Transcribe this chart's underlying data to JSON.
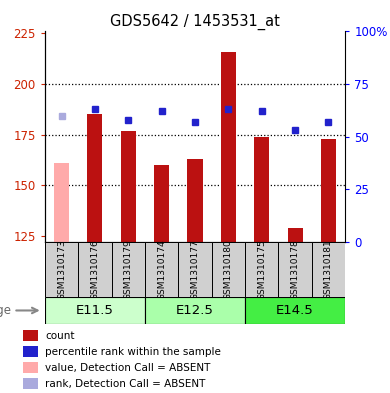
{
  "title": "GDS5642 / 1453531_at",
  "samples": [
    "GSM1310173",
    "GSM1310176",
    "GSM1310179",
    "GSM1310174",
    "GSM1310177",
    "GSM1310180",
    "GSM1310175",
    "GSM1310178",
    "GSM1310181"
  ],
  "count_values": [
    161,
    185,
    177,
    160,
    163,
    216,
    174,
    129,
    173
  ],
  "rank_values": [
    60,
    63,
    58,
    62,
    57,
    63,
    62,
    53,
    57
  ],
  "absent_flags": [
    true,
    false,
    false,
    false,
    false,
    false,
    false,
    false,
    false
  ],
  "ylim_left": [
    122,
    226
  ],
  "ylim_right": [
    0,
    100
  ],
  "yticks_left": [
    125,
    150,
    175,
    200,
    225
  ],
  "ytick_labels_left": [
    "125",
    "150",
    "175",
    "200",
    "225"
  ],
  "ytick_labels_right": [
    "0",
    "25",
    "50",
    "75",
    "100%"
  ],
  "yticks_right": [
    0,
    25,
    50,
    75,
    100
  ],
  "age_groups": [
    {
      "label": "E11.5",
      "start": 0,
      "end": 3
    },
    {
      "label": "E12.5",
      "start": 3,
      "end": 6
    },
    {
      "label": "E14.5",
      "start": 6,
      "end": 9
    }
  ],
  "bar_color_normal": "#bb1111",
  "bar_color_absent": "#ffaaaa",
  "rank_color_normal": "#2222cc",
  "rank_color_absent": "#aaaadd",
  "age_group_color_light": "#ccffcc",
  "age_group_color_bright": "#44ee44",
  "age_group_color_mid": "#aaffaa",
  "grid_color": "#000000",
  "background_color": "#ffffff",
  "xtick_bg": "#cccccc",
  "legend_items": [
    {
      "color": "#bb1111",
      "label": "count"
    },
    {
      "color": "#2222cc",
      "label": "percentile rank within the sample"
    },
    {
      "color": "#ffaaaa",
      "label": "value, Detection Call = ABSENT"
    },
    {
      "color": "#aaaadd",
      "label": "rank, Detection Call = ABSENT"
    }
  ]
}
